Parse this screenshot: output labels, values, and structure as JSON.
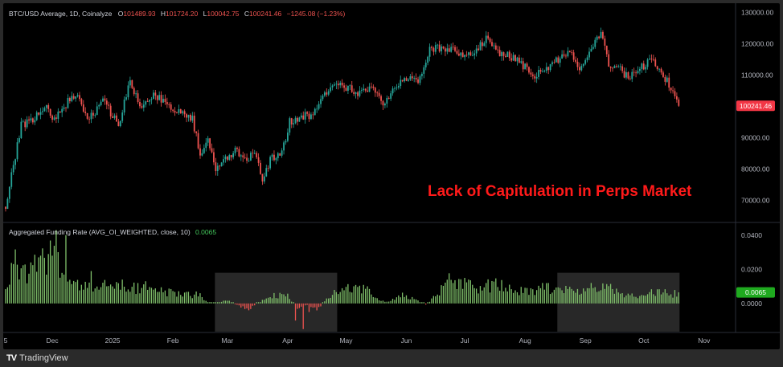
{
  "chart_data": [
    {
      "type": "candlestick",
      "legend": {
        "symbol": "BTC/USD Average, 1D, Coinalyze",
        "open_label": "O",
        "open": "101489.93",
        "high_label": "H",
        "high": "101724.20",
        "low_label": "L",
        "low": "100042.75",
        "close_label": "C",
        "close": "100241.46",
        "change": "−1245.08 (−1.23%)"
      },
      "annotation": "Lack of Capitulation in Perps Market",
      "last_price_label": "100241.46",
      "y_ticks": [
        "130000.00",
        "120000.00",
        "110000.00",
        "100000.00",
        "90000.00",
        "80000.00",
        "70000.00"
      ],
      "y_tick_values": [
        130000,
        120000,
        110000,
        100000,
        90000,
        80000,
        70000
      ],
      "ylim": [
        63000,
        133000
      ],
      "colors": {
        "up": "#26a69a",
        "down": "#ef5350",
        "last_price_bg": "#f23645"
      },
      "anchors": [
        [
          0,
          68000
        ],
        [
          4,
          81000
        ],
        [
          8,
          94000
        ],
        [
          14,
          96000
        ],
        [
          20,
          100000
        ],
        [
          25,
          96000
        ],
        [
          32,
          101500
        ],
        [
          37,
          104000
        ],
        [
          42,
          95000
        ],
        [
          50,
          102000
        ],
        [
          58,
          94000
        ],
        [
          64,
          108000
        ],
        [
          70,
          99000
        ],
        [
          76,
          104000
        ],
        [
          84,
          100000
        ],
        [
          90,
          98000
        ],
        [
          96,
          96000
        ],
        [
          100,
          85000
        ],
        [
          104,
          90000
        ],
        [
          108,
          80000
        ],
        [
          114,
          84000
        ],
        [
          118,
          86000
        ],
        [
          124,
          83000
        ],
        [
          128,
          85000
        ],
        [
          132,
          77000
        ],
        [
          136,
          83000
        ],
        [
          142,
          85000
        ],
        [
          146,
          95000
        ],
        [
          152,
          97000
        ],
        [
          158,
          97000
        ],
        [
          164,
          104000
        ],
        [
          170,
          108000
        ],
        [
          176,
          106000
        ],
        [
          182,
          104000
        ],
        [
          188,
          106000
        ],
        [
          194,
          101000
        ],
        [
          200,
          106000
        ],
        [
          206,
          109000
        ],
        [
          212,
          108000
        ],
        [
          218,
          118000
        ],
        [
          224,
          119000
        ],
        [
          230,
          118000
        ],
        [
          236,
          116000
        ],
        [
          242,
          118000
        ],
        [
          248,
          122000
        ],
        [
          254,
          117000
        ],
        [
          260,
          116000
        ],
        [
          266,
          113000
        ],
        [
          272,
          110000
        ],
        [
          278,
          112000
        ],
        [
          284,
          115000
        ],
        [
          290,
          117000
        ],
        [
          296,
          112000
        ],
        [
          302,
          120000
        ],
        [
          306,
          124000
        ],
        [
          310,
          113000
        ],
        [
          314,
          113000
        ],
        [
          320,
          109000
        ],
        [
          326,
          112000
        ],
        [
          332,
          115000
        ],
        [
          338,
          110000
        ],
        [
          342,
          106000
        ],
        [
          346,
          100241
        ]
      ]
    },
    {
      "type": "bar",
      "legend": {
        "name": "Aggregated Funding Rate (AVG_OI_WEIGHTED, close, 10)",
        "value": "0.0065"
      },
      "last_value_label": "0.0065",
      "y_ticks": [
        "0.0400",
        "0.0200",
        "0.0000"
      ],
      "y_tick_values": [
        0.04,
        0.02,
        0
      ],
      "ylim": [
        -0.017,
        0.047
      ],
      "colors": {
        "positive": "#7fbf6a",
        "negative": "#ef5350",
        "last_value_bg": "#1faa1f"
      },
      "shaded_ranges": [
        [
          108,
          170
        ],
        [
          284,
          346
        ]
      ],
      "anchors": [
        [
          0,
          0.012
        ],
        [
          5,
          0.025
        ],
        [
          10,
          0.018
        ],
        [
          15,
          0.022
        ],
        [
          20,
          0.026
        ],
        [
          24,
          0.035
        ],
        [
          28,
          0.022
        ],
        [
          32,
          0.014
        ],
        [
          38,
          0.01
        ],
        [
          45,
          0.011
        ],
        [
          52,
          0.012
        ],
        [
          60,
          0.009
        ],
        [
          68,
          0.01
        ],
        [
          76,
          0.008
        ],
        [
          84,
          0.007
        ],
        [
          92,
          0.006
        ],
        [
          100,
          0.005
        ],
        [
          104,
          0.001
        ],
        [
          108,
          0.0
        ],
        [
          114,
          0.002
        ],
        [
          120,
          -0.002
        ],
        [
          126,
          -0.003
        ],
        [
          132,
          0.002
        ],
        [
          138,
          0.005
        ],
        [
          144,
          0.006
        ],
        [
          150,
          -0.003
        ],
        [
          156,
          -0.001
        ],
        [
          160,
          -0.004
        ],
        [
          166,
          0.004
        ],
        [
          170,
          0.007
        ],
        [
          176,
          0.009
        ],
        [
          184,
          0.01
        ],
        [
          190,
          0.004
        ],
        [
          196,
          0.001
        ],
        [
          204,
          0.005
        ],
        [
          210,
          0.003
        ],
        [
          216,
          -0.001
        ],
        [
          222,
          0.006
        ],
        [
          228,
          0.014
        ],
        [
          236,
          0.012
        ],
        [
          244,
          0.01
        ],
        [
          252,
          0.012
        ],
        [
          260,
          0.009
        ],
        [
          268,
          0.007
        ],
        [
          276,
          0.009
        ],
        [
          284,
          0.01
        ],
        [
          292,
          0.008
        ],
        [
          300,
          0.007
        ],
        [
          306,
          0.01
        ],
        [
          312,
          0.009
        ],
        [
          318,
          0.006
        ],
        [
          324,
          0.005
        ],
        [
          330,
          0.006
        ],
        [
          336,
          0.008
        ],
        [
          342,
          0.006
        ],
        [
          346,
          0.0065
        ]
      ],
      "spikes": [
        [
          18,
          0.028
        ],
        [
          24,
          0.028
        ],
        [
          26,
          0.043
        ],
        [
          31,
          0.04
        ],
        [
          44,
          0.019
        ],
        [
          60,
          0.014
        ],
        [
          72,
          0.013
        ],
        [
          98,
          0.007
        ],
        [
          100,
          0.006
        ],
        [
          125,
          -0.004
        ],
        [
          149,
          -0.01
        ],
        [
          153,
          -0.015
        ],
        [
          156,
          -0.005
        ],
        [
          236,
          0.015
        ],
        [
          247,
          0.012
        ],
        [
          259,
          0.011
        ],
        [
          276,
          0.012
        ],
        [
          301,
          0.012
        ]
      ]
    }
  ],
  "x_axis": {
    "ticks": [
      {
        "label": "5",
        "i": 0
      },
      {
        "label": "Dec",
        "i": 24
      },
      {
        "label": "2025",
        "i": 55
      },
      {
        "label": "Feb",
        "i": 86
      },
      {
        "label": "Mar",
        "i": 114
      },
      {
        "label": "Apr",
        "i": 145
      },
      {
        "label": "May",
        "i": 175
      },
      {
        "label": "Jun",
        "i": 206
      },
      {
        "label": "Jul",
        "i": 236
      },
      {
        "label": "Aug",
        "i": 267
      },
      {
        "label": "Sep",
        "i": 298
      },
      {
        "label": "Oct",
        "i": 328
      },
      {
        "label": "Nov",
        "i": 359
      }
    ]
  },
  "brand": {
    "logo_text": "TV",
    "name": "TradingView"
  }
}
